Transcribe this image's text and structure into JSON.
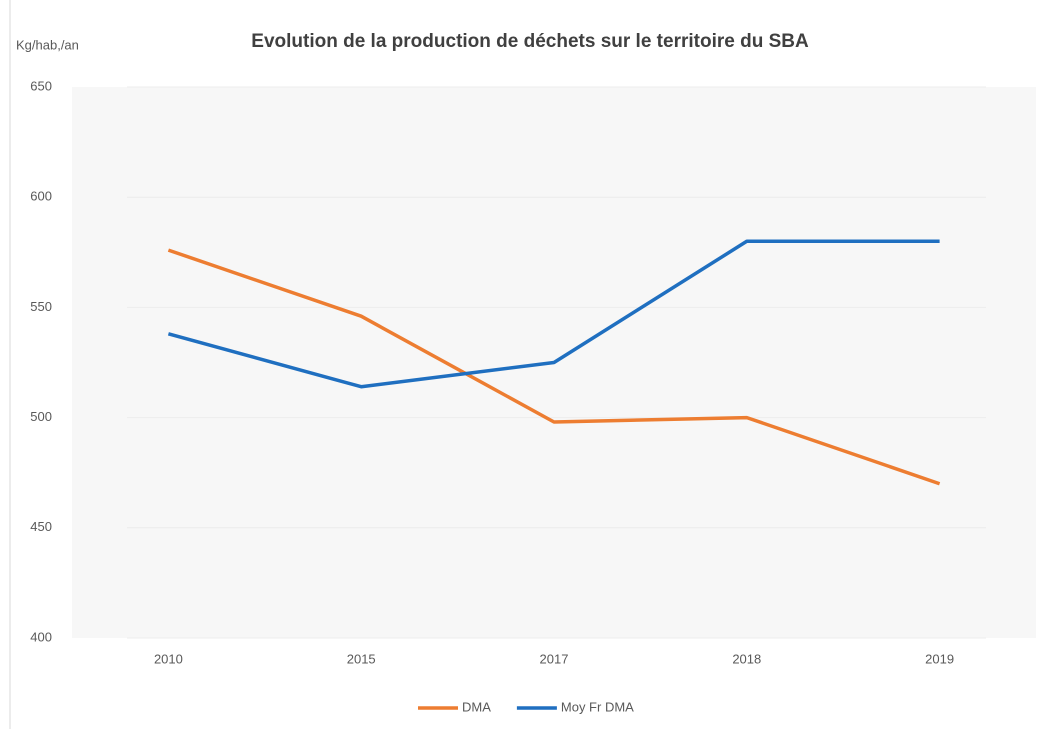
{
  "chart_data": {
    "type": "line",
    "title": "Evolution de la production de déchets sur le territoire du SBA",
    "y_label": "Kg/hab,/an",
    "categories": [
      "2010",
      "2015",
      "2017",
      "2018",
      "2019"
    ],
    "series": [
      {
        "name": "DMA",
        "color": "#ed7d31",
        "values": [
          576,
          546,
          498,
          500,
          470
        ]
      },
      {
        "name": "Moy Fr DMA",
        "color": "#1f6fc0",
        "values": [
          538,
          514,
          525,
          580,
          580
        ]
      }
    ],
    "ylim": [
      400,
      650
    ],
    "yticks": [
      400,
      450,
      500,
      550,
      600,
      650
    ],
    "grid": true,
    "legend": "bottom"
  }
}
